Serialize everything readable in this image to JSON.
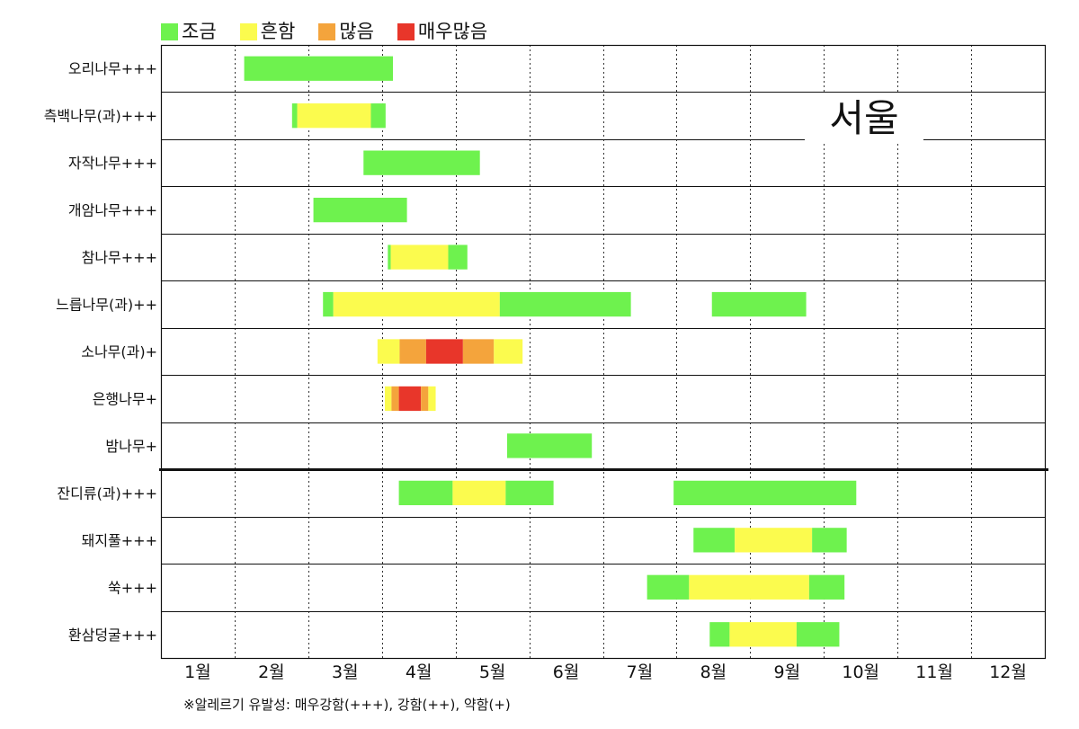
{
  "chart_data": {
    "type": "gantt",
    "location": "서울",
    "legend": [
      {
        "key": "low",
        "label": "조금",
        "color": "#6ef24e"
      },
      {
        "key": "common",
        "label": "흔함",
        "color": "#fbfb4e"
      },
      {
        "key": "many",
        "label": "많음",
        "color": "#f4a43c"
      },
      {
        "key": "very_many",
        "label": "매우많음",
        "color": "#e8362a"
      }
    ],
    "months": [
      "1월",
      "2월",
      "3월",
      "4월",
      "5월",
      "6월",
      "7월",
      "8월",
      "9월",
      "10월",
      "11월",
      "12월"
    ],
    "x_unit": "month (1.0 = start of January, 13.0 = end of December)",
    "rows": [
      {
        "label": "오리나무+++",
        "segments": [
          {
            "start": 2.13,
            "end": 4.15,
            "level": "low"
          }
        ]
      },
      {
        "label": "측백나무(과)+++",
        "segments": [
          {
            "start": 2.78,
            "end": 2.85,
            "level": "low"
          },
          {
            "start": 2.85,
            "end": 3.85,
            "level": "common"
          },
          {
            "start": 3.85,
            "end": 4.05,
            "level": "low"
          }
        ]
      },
      {
        "label": "자작나무+++",
        "segments": [
          {
            "start": 3.75,
            "end": 5.33,
            "level": "low"
          }
        ]
      },
      {
        "label": "개암나무+++",
        "segments": [
          {
            "start": 3.07,
            "end": 4.34,
            "level": "low"
          }
        ]
      },
      {
        "label": "참나무+++",
        "segments": [
          {
            "start": 4.08,
            "end": 4.12,
            "level": "low"
          },
          {
            "start": 4.12,
            "end": 4.9,
            "level": "common"
          },
          {
            "start": 4.9,
            "end": 5.16,
            "level": "low"
          }
        ]
      },
      {
        "label": "느릅나무(과)++",
        "segments": [
          {
            "start": 3.2,
            "end": 3.34,
            "level": "low"
          },
          {
            "start": 3.34,
            "end": 5.6,
            "level": "common"
          },
          {
            "start": 5.6,
            "end": 7.38,
            "level": "low"
          },
          {
            "start": 8.48,
            "end": 9.76,
            "level": "low"
          }
        ]
      },
      {
        "label": "소나무(과)+",
        "segments": [
          {
            "start": 3.94,
            "end": 4.24,
            "level": "common"
          },
          {
            "start": 4.24,
            "end": 4.6,
            "level": "many"
          },
          {
            "start": 4.6,
            "end": 5.1,
            "level": "very_many"
          },
          {
            "start": 5.1,
            "end": 5.52,
            "level": "many"
          },
          {
            "start": 5.52,
            "end": 5.91,
            "level": "common"
          }
        ]
      },
      {
        "label": "은행나무+",
        "segments": [
          {
            "start": 4.04,
            "end": 4.13,
            "level": "common"
          },
          {
            "start": 4.13,
            "end": 4.23,
            "level": "many"
          },
          {
            "start": 4.23,
            "end": 4.53,
            "level": "very_many"
          },
          {
            "start": 4.53,
            "end": 4.63,
            "level": "many"
          },
          {
            "start": 4.63,
            "end": 4.73,
            "level": "common"
          }
        ]
      },
      {
        "label": "밤나무+",
        "segments": [
          {
            "start": 5.7,
            "end": 6.85,
            "level": "low"
          }
        ]
      },
      {
        "label": "잔디류(과)+++",
        "segments": [
          {
            "start": 4.23,
            "end": 4.96,
            "level": "low"
          },
          {
            "start": 4.96,
            "end": 5.68,
            "level": "common"
          },
          {
            "start": 5.68,
            "end": 6.33,
            "level": "low"
          },
          {
            "start": 7.96,
            "end": 10.44,
            "level": "low"
          }
        ]
      },
      {
        "label": "돼지풀+++",
        "segments": [
          {
            "start": 8.23,
            "end": 8.79,
            "level": "low"
          },
          {
            "start": 8.79,
            "end": 9.84,
            "level": "common"
          },
          {
            "start": 9.84,
            "end": 10.31,
            "level": "low"
          }
        ]
      },
      {
        "label": "쑥+++",
        "segments": [
          {
            "start": 7.6,
            "end": 8.17,
            "level": "low"
          },
          {
            "start": 8.17,
            "end": 9.8,
            "level": "common"
          },
          {
            "start": 9.8,
            "end": 10.28,
            "level": "low"
          }
        ]
      },
      {
        "label": "환삼덩굴+++",
        "segments": [
          {
            "start": 8.45,
            "end": 8.72,
            "level": "low"
          },
          {
            "start": 8.72,
            "end": 9.63,
            "level": "common"
          },
          {
            "start": 9.63,
            "end": 10.21,
            "level": "low"
          }
        ]
      }
    ],
    "group_separator_after_row": 9
  },
  "footnote": "※알레르기 유발성: 매우강함(+++), 강함(++), 약함(+)"
}
